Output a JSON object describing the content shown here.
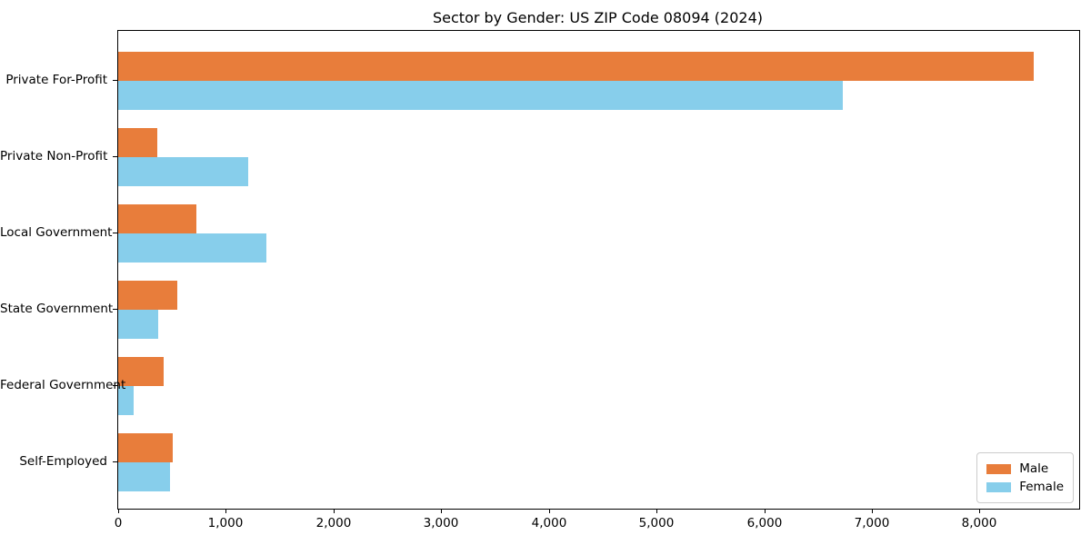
{
  "chart_data": {
    "type": "bar",
    "orientation": "horizontal",
    "title": "Sector by Gender: US ZIP Code 08094 (2024)",
    "categories": [
      "Private For-Profit",
      "Private Non-Profit",
      "Local Government",
      "State Government",
      "Federal Government",
      "Self-Employed"
    ],
    "series": [
      {
        "name": "Male",
        "color": "#e87d3b",
        "values": [
          8500,
          360,
          730,
          550,
          420,
          510
        ]
      },
      {
        "name": "Female",
        "color": "#87ceeb",
        "values": [
          6730,
          1210,
          1380,
          370,
          140,
          480
        ]
      }
    ],
    "xlabel": "",
    "ylabel": "",
    "xlim": [
      0,
      8925
    ],
    "xticks": [
      0,
      1000,
      2000,
      3000,
      4000,
      5000,
      6000,
      7000,
      8000
    ],
    "xtick_labels": [
      "0",
      "1,000",
      "2,000",
      "3,000",
      "4,000",
      "5,000",
      "6,000",
      "7,000",
      "8,000"
    ],
    "grid": false,
    "legend": {
      "position": "lower right",
      "entries": [
        "Male",
        "Female"
      ]
    },
    "frame_color": "#000000",
    "background_color": "#ffffff"
  }
}
